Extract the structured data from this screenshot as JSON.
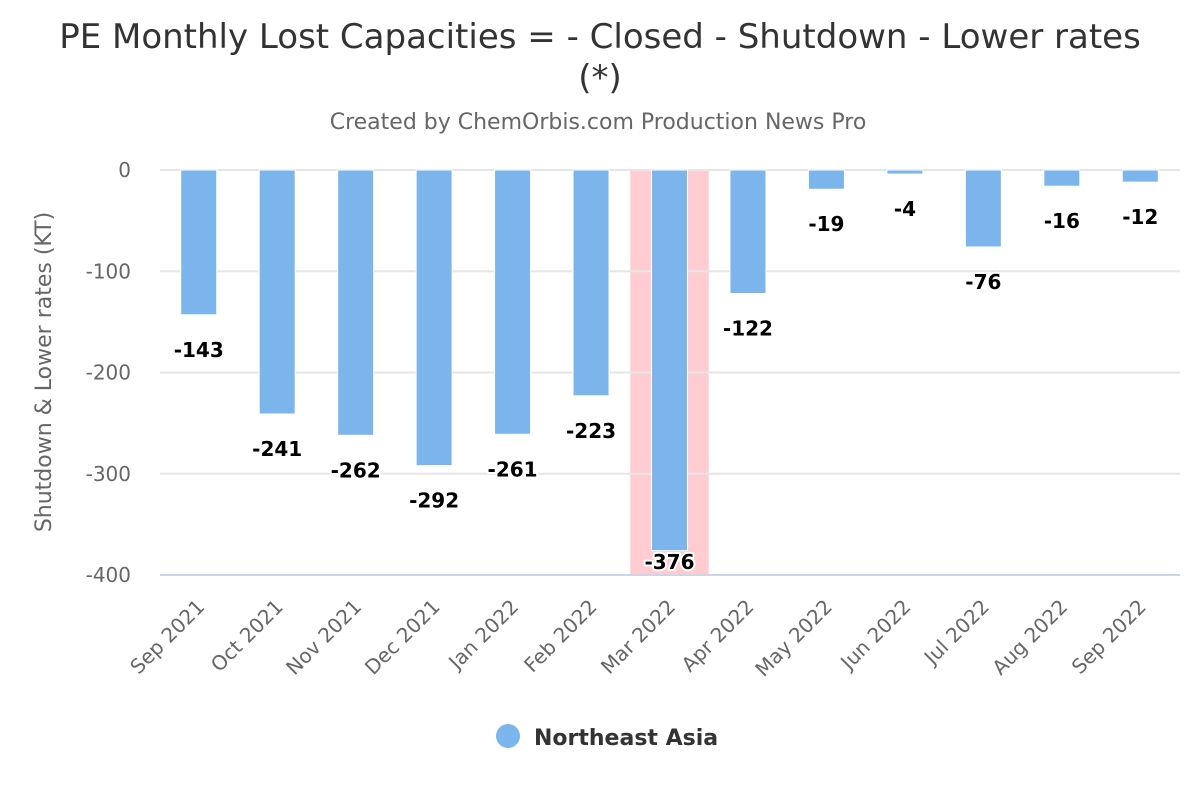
{
  "chart_data": {
    "type": "bar",
    "title_line1": "PE Monthly Lost Capacities = - Closed - Shutdown - Lower rates",
    "title_line2": "(*)",
    "subtitle": "Created by ChemOrbis.com Production News Pro",
    "ylabel": "Shutdown & Lower rates (KT)",
    "xlabel": "",
    "ylim": [
      -400,
      0
    ],
    "yticks": [
      0,
      -100,
      -200,
      -300,
      -400
    ],
    "ytick_labels": [
      "0",
      "-100",
      "-200",
      "-300",
      "-400"
    ],
    "grid": true,
    "categories": [
      "Sep 2021",
      "Oct 2021",
      "Nov 2021",
      "Dec 2021",
      "Jan 2022",
      "Feb 2022",
      "Mar 2022",
      "Apr 2022",
      "May 2022",
      "Jun 2022",
      "Jul 2022",
      "Aug 2022",
      "Sep 2022"
    ],
    "highlight_category": "Mar 2022",
    "highlight_color": "#ffccd1",
    "series": [
      {
        "name": "Northeast Asia",
        "color": "#7cb5ec",
        "values": [
          -143,
          -241,
          -262,
          -292,
          -261,
          -223,
          -376,
          -122,
          -19,
          -4,
          -76,
          -16,
          -12
        ],
        "value_labels": [
          "-143",
          "-241",
          "-262",
          "-292",
          "-261",
          "-223",
          "-376",
          "-122",
          "-19",
          "-4",
          "-76",
          "-16",
          "-12"
        ]
      }
    ],
    "legend_position": "bottom-center"
  }
}
